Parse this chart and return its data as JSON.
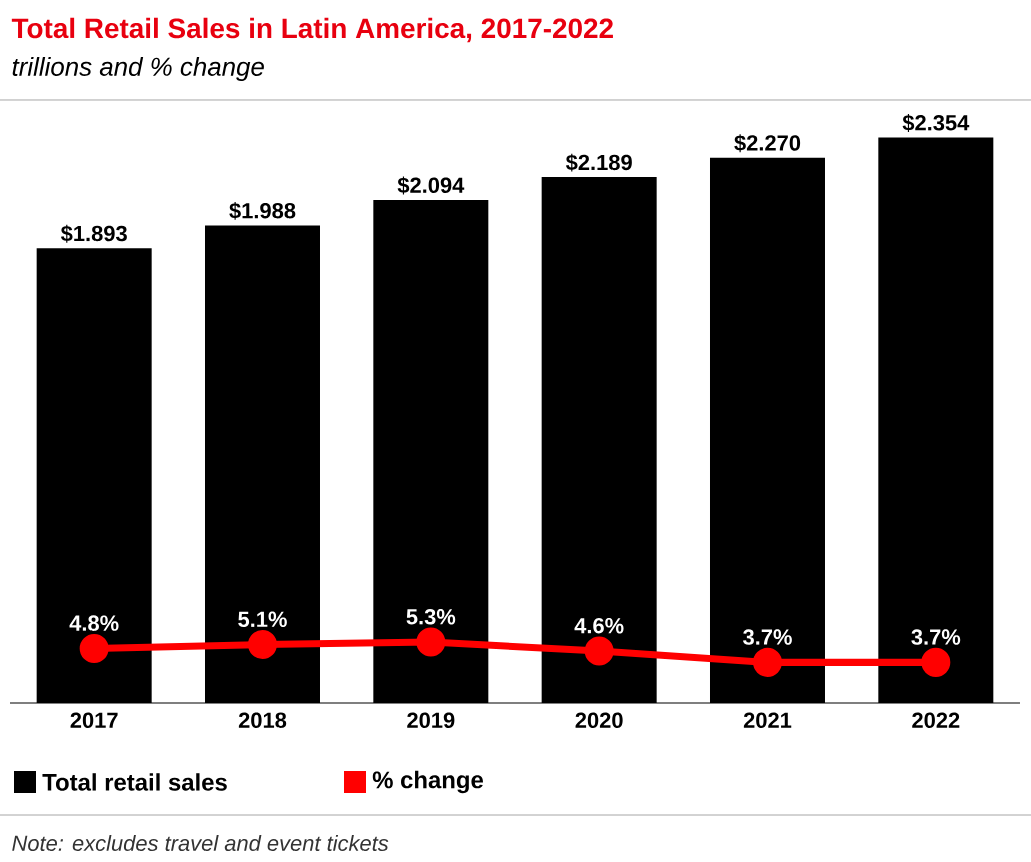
{
  "chart_data": {
    "type": "bar",
    "title": "Total Retail Sales in Latin America, 2017-2022",
    "subtitle": "trillions and % change",
    "categories": [
      "2017",
      "2018",
      "2019",
      "2020",
      "2021",
      "2022"
    ],
    "series": [
      {
        "name": "Total retail sales",
        "color": "#000000",
        "values": [
          1.893,
          1.988,
          2.094,
          2.189,
          2.27,
          2.354
        ],
        "value_labels": [
          "$1.893",
          "$1.988",
          "$2.094",
          "$2.189",
          "$2.270",
          "$2.354"
        ]
      },
      {
        "name": "% change",
        "type": "line",
        "axis": "y2",
        "color": "#ff0000",
        "values": [
          4.8,
          5.1,
          5.3,
          4.6,
          3.7,
          3.7
        ],
        "value_labels": [
          "4.8%",
          "5.1%",
          "5.3%",
          "4.6%",
          "3.7%",
          "3.7%"
        ]
      }
    ],
    "ylim": [
      0,
      2.51
    ],
    "y2lim": [
      0.5,
      48
    ],
    "marker": "circle",
    "legend": "bottom",
    "annotations": [
      "Note: excludes travel and event tickets"
    ]
  }
}
